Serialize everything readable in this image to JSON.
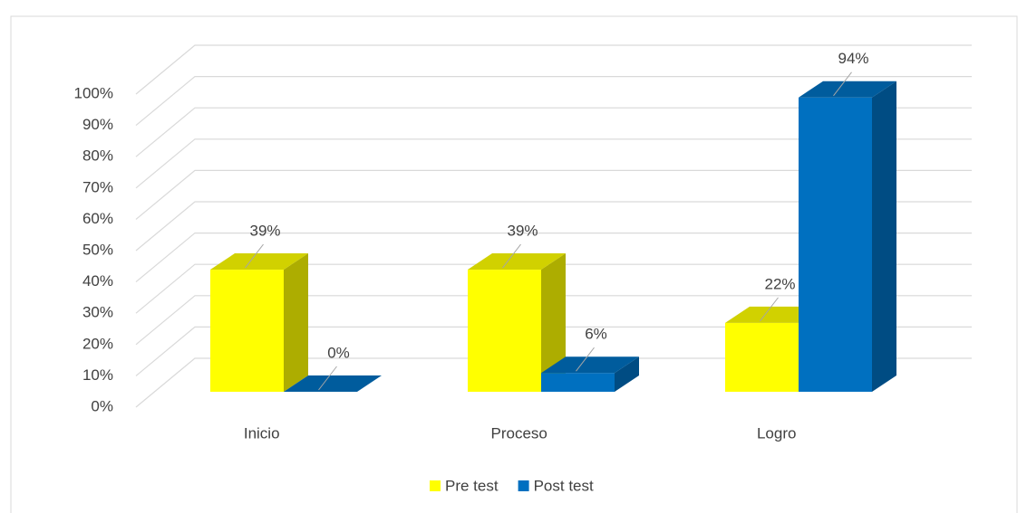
{
  "chart_data": {
    "type": "bar3d",
    "categories": [
      "Inicio",
      "Proceso",
      "Logro"
    ],
    "series": [
      {
        "name": "Pre test",
        "color": "#ffff00",
        "values": [
          39,
          39,
          22
        ],
        "value_labels": [
          "39%",
          "39%",
          "22%"
        ]
      },
      {
        "name": "Post test",
        "color": "#0070c0",
        "values": [
          0,
          6,
          94
        ],
        "value_labels": [
          "0%",
          "6%",
          "94%"
        ]
      }
    ],
    "ylim": [
      0,
      100
    ],
    "yticks": [
      {
        "value": 0,
        "label": "0%"
      },
      {
        "value": 10,
        "label": "10%"
      },
      {
        "value": 20,
        "label": "20%"
      },
      {
        "value": 30,
        "label": "30%"
      },
      {
        "value": 40,
        "label": "40%"
      },
      {
        "value": 50,
        "label": "50%"
      },
      {
        "value": 60,
        "label": "60%"
      },
      {
        "value": 70,
        "label": "70%"
      },
      {
        "value": 80,
        "label": "80%"
      },
      {
        "value": 90,
        "label": "90%"
      },
      {
        "value": 100,
        "label": "100%"
      }
    ],
    "grid": true,
    "legend": "bottom"
  }
}
